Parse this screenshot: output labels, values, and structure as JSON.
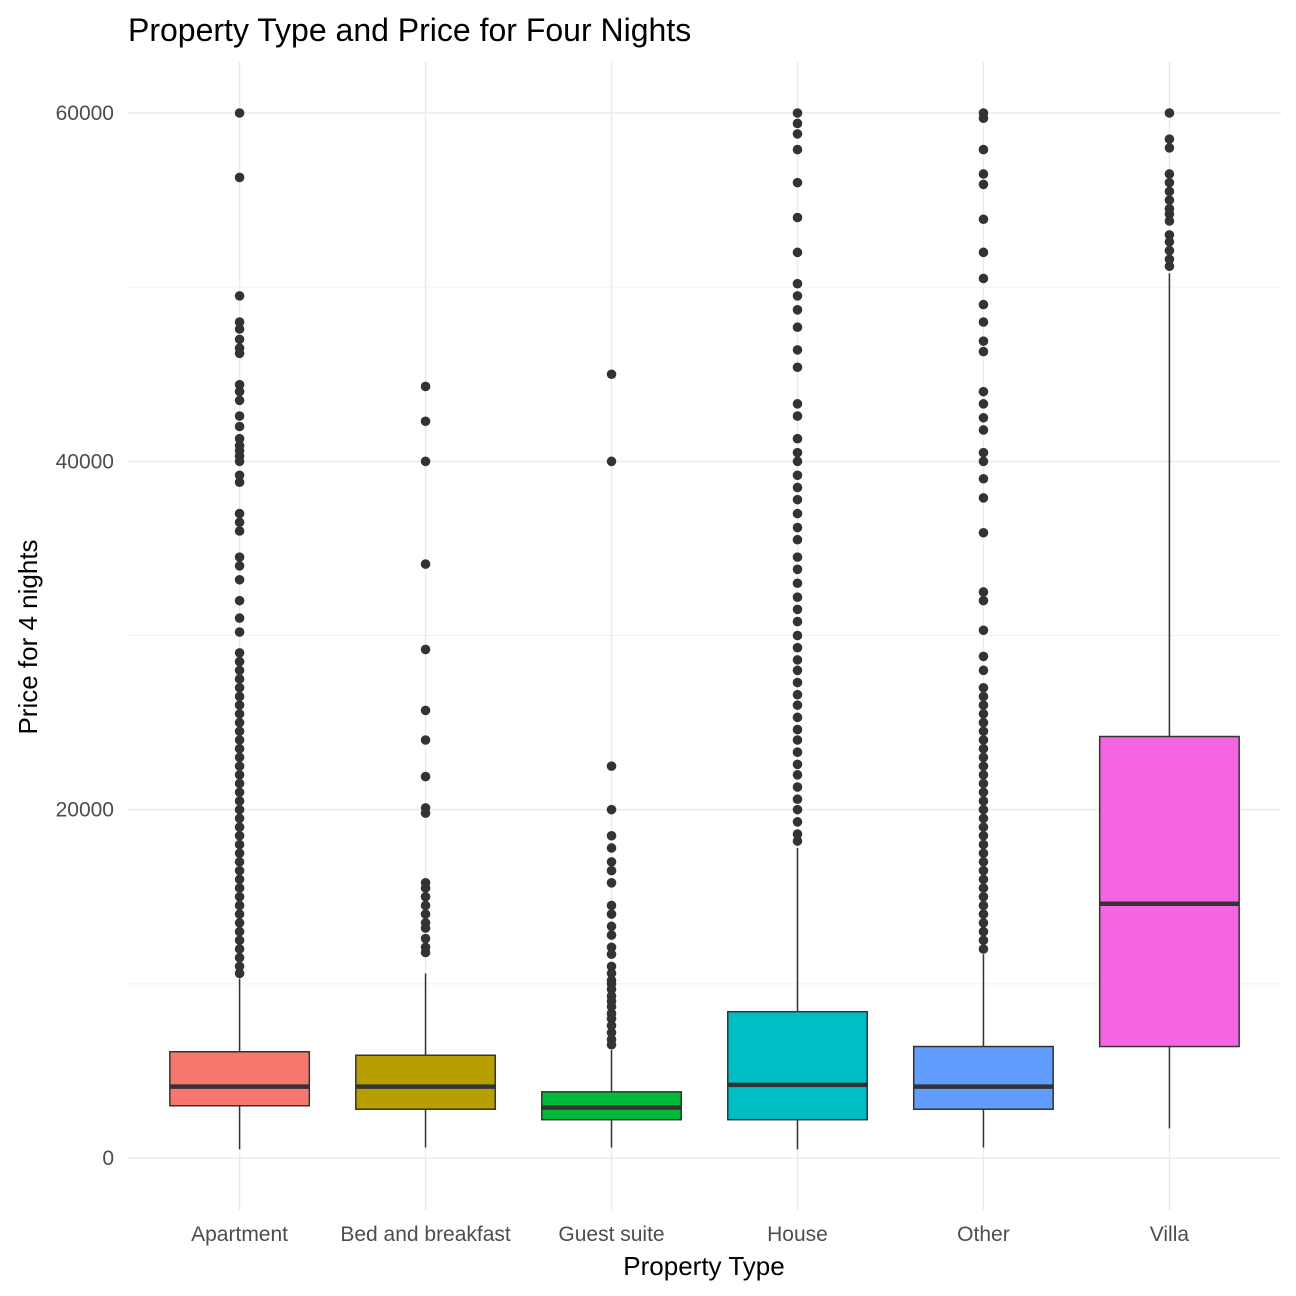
{
  "chart_data": {
    "type": "boxplot",
    "title": "Property Type and Price for Four Nights",
    "xlabel": "Property Type",
    "ylabel": "Price for 4 nights",
    "ylim": [
      -3000,
      63000
    ],
    "yticks": [
      0,
      20000,
      40000,
      60000
    ],
    "yticks_labels": [
      "0",
      "20000",
      "40000",
      "60000"
    ],
    "grid": true,
    "legend": "none",
    "categories": [
      "Apartment",
      "Bed and breakfast",
      "Guest suite",
      "House",
      "Other",
      "Villa"
    ],
    "series": [
      {
        "category": "Apartment",
        "color": "#F8766D",
        "whisker_low": 500,
        "q1": 3000,
        "median": 4100,
        "q3": 6100,
        "whisker_high": 10300,
        "outliers": [
          60000,
          56300,
          49500,
          48000,
          47600,
          47000,
          46500,
          46200,
          44400,
          44000,
          43500,
          42600,
          42000,
          41300,
          40900,
          40600,
          40300,
          40000,
          39200,
          38800,
          37000,
          36500,
          36000,
          34500,
          34000,
          33200,
          32000,
          31000,
          30200,
          29000,
          28500,
          28000,
          27500,
          27000,
          26500,
          26000,
          25500,
          25000,
          24500,
          24000,
          23500,
          23000,
          22500,
          22000,
          21500,
          21000,
          20500,
          20000,
          19500,
          19000,
          18500,
          18000,
          17500,
          17000,
          16500,
          16000,
          15500,
          15000,
          14500,
          14000,
          13500,
          13000,
          12500,
          12000,
          11500,
          11000,
          10600
        ]
      },
      {
        "category": "Bed and breakfast",
        "color": "#B79F00",
        "whisker_low": 600,
        "q1": 2800,
        "median": 4100,
        "q3": 5900,
        "whisker_high": 10600,
        "outliers": [
          44300,
          42300,
          40000,
          34100,
          29200,
          25700,
          24000,
          21900,
          20100,
          19800,
          15800,
          15500,
          15000,
          14500,
          14000,
          13500,
          13200,
          12600,
          12100,
          11800
        ]
      },
      {
        "category": "Guest suite",
        "color": "#00BA38",
        "whisker_low": 600,
        "q1": 2200,
        "median": 2900,
        "q3": 3800,
        "whisker_high": 6200,
        "outliers": [
          45000,
          40000,
          22500,
          20000,
          18500,
          17800,
          17000,
          16500,
          15800,
          14500,
          14000,
          13300,
          12800,
          12100,
          11700,
          11000,
          10600,
          10200,
          10000,
          9700,
          9300,
          9000,
          8700,
          8300,
          8000,
          7600,
          7200,
          6800,
          6500
        ]
      },
      {
        "category": "House",
        "color": "#00BFC4",
        "whisker_low": 500,
        "q1": 2200,
        "median": 4200,
        "q3": 8400,
        "whisker_high": 17800,
        "outliers": [
          60000,
          59400,
          58800,
          57900,
          56000,
          54000,
          52000,
          50200,
          49500,
          48700,
          47700,
          46400,
          45400,
          43300,
          42600,
          41300,
          40500,
          40000,
          39200,
          38500,
          37800,
          37000,
          36200,
          35500,
          34500,
          33800,
          33000,
          32200,
          31500,
          30800,
          30000,
          29300,
          28600,
          28000,
          27300,
          26600,
          26000,
          25300,
          24600,
          24000,
          23300,
          22600,
          22000,
          21300,
          20600,
          20000,
          19300,
          18600,
          18200
        ]
      },
      {
        "category": "Other",
        "color": "#619CFF",
        "whisker_low": 600,
        "q1": 2800,
        "median": 4100,
        "q3": 6400,
        "whisker_high": 11700,
        "outliers": [
          60000,
          59700,
          57900,
          56500,
          55900,
          53900,
          52000,
          50500,
          49000,
          48000,
          46900,
          46300,
          44000,
          43300,
          42500,
          41800,
          40500,
          40000,
          39000,
          37900,
          35900,
          32500,
          32000,
          30300,
          28800,
          28000,
          27000,
          26500,
          26000,
          25500,
          25000,
          24500,
          24000,
          23500,
          23000,
          22500,
          22000,
          21500,
          21000,
          20500,
          20000,
          19500,
          19000,
          18500,
          18000,
          17500,
          17000,
          16500,
          16000,
          15500,
          15000,
          14500,
          14000,
          13500,
          13000,
          12500,
          12000
        ]
      },
      {
        "category": "Villa",
        "color": "#F564E3",
        "whisker_low": 1700,
        "q1": 6400,
        "median": 14600,
        "q3": 24200,
        "whisker_high": 50800,
        "outliers": [
          60000,
          58500,
          58000,
          56500,
          56000,
          55500,
          55000,
          54500,
          54200,
          53800,
          53000,
          52600,
          52100,
          51600,
          51200
        ]
      }
    ]
  }
}
